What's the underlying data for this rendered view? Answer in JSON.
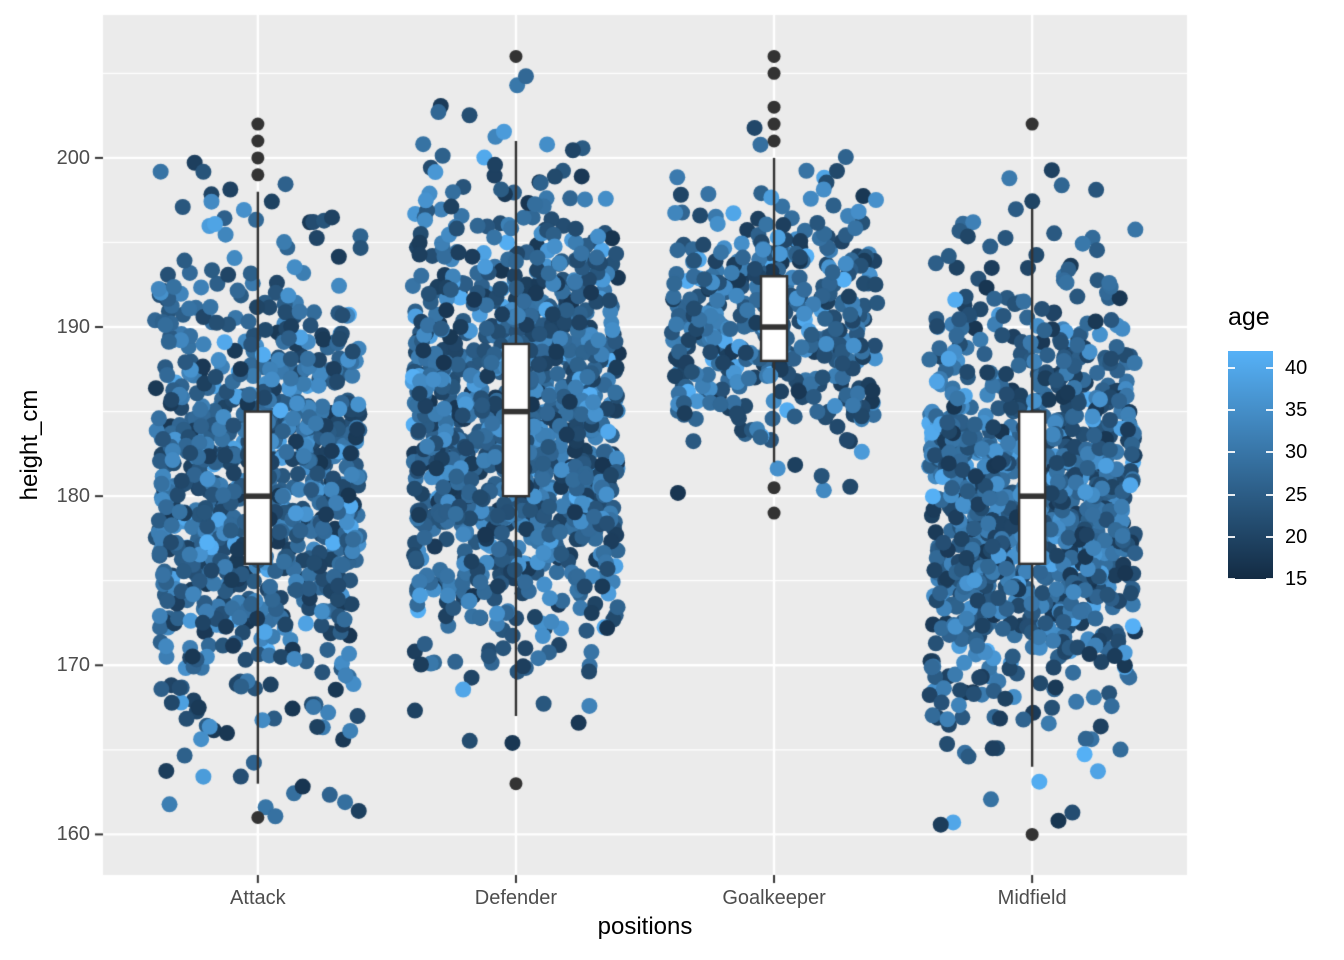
{
  "chart_data": {
    "type": "scatter+boxplot (jittered strip chart, ggplot2 style)",
    "title": "",
    "xlabel": "positions",
    "ylabel": "height_cm",
    "categories": [
      "Attack",
      "Defender",
      "Goalkeeper",
      "Midfield"
    ],
    "x_tick_labels": [
      "Attack",
      "Defender",
      "Goalkeeper",
      "Midfield"
    ],
    "y_tick_labels": [
      "200",
      "190",
      "180",
      "170",
      "160"
    ],
    "y_ticks": [
      200,
      190,
      180,
      170,
      160
    ],
    "y_minor_ticks": [
      205,
      195,
      185,
      175,
      165
    ],
    "ylim": [
      157.6,
      208.45
    ],
    "grid": true,
    "legend_position": "right",
    "boxplots": [
      {
        "category": "Attack",
        "whisker_low": 163,
        "q1": 176,
        "median": 180,
        "q3": 185,
        "whisker_high": 198,
        "outliers_low": [
          161
        ],
        "outliers_high": [
          199,
          200,
          201,
          202
        ]
      },
      {
        "category": "Defender",
        "whisker_low": 167,
        "q1": 180,
        "median": 185,
        "q3": 189,
        "whisker_high": 201,
        "outliers_low": [
          163
        ],
        "outliers_high": [
          206
        ]
      },
      {
        "category": "Goalkeeper",
        "whisker_low": 182,
        "q1": 188,
        "median": 190,
        "q3": 193,
        "whisker_high": 200,
        "outliers_low": [
          179,
          180.5
        ],
        "outliers_high": [
          201,
          202,
          203,
          205,
          206
        ]
      },
      {
        "category": "Midfield",
        "whisker_low": 164,
        "q1": 176,
        "median": 180,
        "q3": 185,
        "whisker_high": 197,
        "outliers_low": [
          160
        ],
        "outliers_high": [
          202
        ]
      }
    ],
    "jitter_clouds": [
      {
        "category": "Attack",
        "n": 950,
        "mean_height": 180.5,
        "sd_height": 6.7,
        "height_range": [
          161,
          202
        ]
      },
      {
        "category": "Defender",
        "n": 1150,
        "mean_height": 184.5,
        "sd_height": 6.7,
        "height_range": [
          163,
          206
        ]
      },
      {
        "category": "Goalkeeper",
        "n": 430,
        "mean_height": 190.5,
        "sd_height": 3.9,
        "height_range": [
          179,
          206
        ]
      },
      {
        "category": "Midfield",
        "n": 1050,
        "mean_height": 180.2,
        "sd_height": 6.6,
        "height_range": [
          160,
          202
        ]
      }
    ],
    "jitter_width_fraction": 0.4,
    "point_radius_px": 8,
    "color_scale": {
      "variable": "age",
      "low_value": 15,
      "high_value": 42,
      "low_color": "#132B43",
      "high_color": "#56B1F7",
      "legend_tick_values": [
        40,
        35,
        30,
        25,
        20,
        15
      ],
      "legend_tick_labels": [
        "40",
        "35",
        "30",
        "25",
        "20",
        "15"
      ]
    }
  },
  "legend": {
    "title": "age"
  },
  "style": {
    "figure_bg": "#FFFFFF",
    "panel_bg": "#EBEBEB",
    "grid_color": "#FFFFFF",
    "box_fill": "#FFFFFF",
    "box_stroke": "#333333",
    "outlier_color": "#333333",
    "axis_tick_color": "#333333",
    "tick_label_color": "#4D4D4D",
    "title_color": "#000000"
  }
}
